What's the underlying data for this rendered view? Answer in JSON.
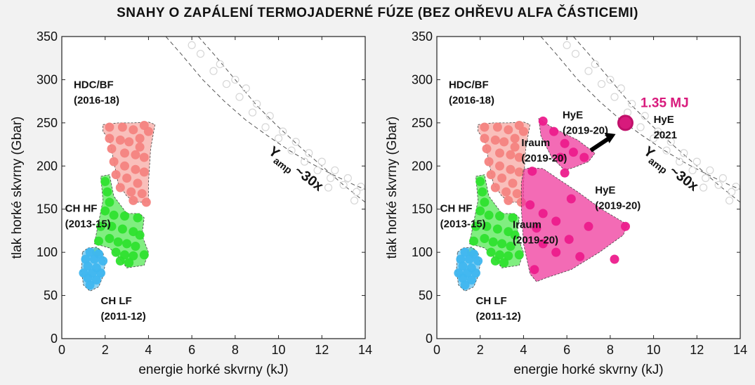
{
  "title": "SNAHY O ZAPÁLENÍ  TERMOJADERNÉ  FÚZE (BEZ OHŘEVU ALFA ČÁSTICEMI)",
  "colors": {
    "hdc": "#f4837f",
    "hdc_fill": "#f7a9a4",
    "chhf": "#2ee02e",
    "chhf_fill": "#55e855",
    "chlf": "#3fb6ef",
    "chlf_fill": "#67c4f0",
    "hye": "#ec1c8c",
    "hye_fill": "#ef3a9c",
    "iraum": "#e8137f",
    "mj": "#d81a7c",
    "faint": "#d6d6d6",
    "axis": "#222222"
  },
  "chart_data": [
    {
      "type": "scatter",
      "xlabel": "energie horké skvrny (kJ)",
      "ylabel": "tlak horké skvrny (Gbar)",
      "xlim": [
        0,
        14
      ],
      "ylim": [
        0,
        350
      ],
      "xticks": [
        "0",
        "2",
        "4",
        "6",
        "8",
        "10",
        "12",
        "14"
      ],
      "yticks": [
        "0",
        "50",
        "100",
        "150",
        "200",
        "250",
        "300",
        "350"
      ],
      "curves_label": [
        "Y",
        "amp",
        "~30x"
      ],
      "series": [
        {
          "name": "HDC/BF",
          "label": [
            "HDC/BF",
            "(2016-18)"
          ],
          "color_key": "hdc",
          "region": [
            [
              1.9,
              248
            ],
            [
              2.6,
              250
            ],
            [
              3.3,
              250
            ],
            [
              4.0,
              251
            ],
            [
              4.3,
              248
            ],
            [
              4.1,
              220
            ],
            [
              4.0,
              180
            ],
            [
              4.0,
              158
            ],
            [
              3.4,
              158
            ],
            [
              3.0,
              165
            ],
            [
              2.6,
              180
            ],
            [
              2.4,
              205
            ],
            [
              2.2,
              230
            ],
            [
              1.9,
              240
            ]
          ],
          "points": [
            [
              2.2,
              245
            ],
            [
              2.8,
              245
            ],
            [
              3.3,
              242
            ],
            [
              3.8,
              247
            ],
            [
              4.0,
              240
            ],
            [
              3.6,
              232
            ],
            [
              2.2,
              232
            ],
            [
              2.7,
              230
            ],
            [
              3.1,
              228
            ],
            [
              3.6,
              222
            ],
            [
              2.3,
              220
            ],
            [
              2.9,
              215
            ],
            [
              3.4,
              213
            ],
            [
              3.8,
              210
            ],
            [
              2.4,
              205
            ],
            [
              2.9,
              200
            ],
            [
              3.4,
              196
            ],
            [
              3.8,
              193
            ],
            [
              2.5,
              190
            ],
            [
              3.0,
              186
            ],
            [
              3.5,
              180
            ],
            [
              2.7,
              175
            ],
            [
              3.2,
              170
            ],
            [
              3.7,
              168
            ],
            [
              3.3,
              160
            ],
            [
              3.9,
              158
            ]
          ]
        },
        {
          "name": "CH HF",
          "label": [
            "CH HF",
            "(2013-15)"
          ],
          "color_key": "chhf",
          "region": [
            [
              1.8,
              188
            ],
            [
              2.2,
              190
            ],
            [
              2.4,
              165
            ],
            [
              3.0,
              145
            ],
            [
              3.6,
              145
            ],
            [
              3.8,
              140
            ],
            [
              3.7,
              120
            ],
            [
              4.0,
              100
            ],
            [
              3.8,
              85
            ],
            [
              3.0,
              82
            ],
            [
              2.6,
              95
            ],
            [
              2.2,
              105
            ],
            [
              1.5,
              110
            ],
            [
              1.7,
              135
            ],
            [
              1.9,
              160
            ]
          ],
          "points": [
            [
              2.0,
              182
            ],
            [
              2.1,
              170
            ],
            [
              2.2,
              158
            ],
            [
              2.0,
              148
            ],
            [
              2.4,
              143
            ],
            [
              2.9,
              142
            ],
            [
              3.5,
              140
            ],
            [
              1.8,
              130
            ],
            [
              2.3,
              130
            ],
            [
              2.8,
              127
            ],
            [
              3.3,
              124
            ],
            [
              3.6,
              120
            ],
            [
              1.7,
              113
            ],
            [
              2.2,
              116
            ],
            [
              2.6,
              112
            ],
            [
              3.0,
              110
            ],
            [
              3.4,
              107
            ],
            [
              1.6,
              100
            ],
            [
              2.5,
              100
            ],
            [
              2.9,
              97
            ],
            [
              3.3,
              96
            ],
            [
              3.8,
              97
            ],
            [
              2.7,
              90
            ],
            [
              3.1,
              88
            ]
          ]
        },
        {
          "name": "CH LF",
          "label": [
            "CH LF",
            "(2011-12)"
          ],
          "color_key": "chlf",
          "region": [
            [
              0.95,
              100
            ],
            [
              1.2,
              105
            ],
            [
              1.6,
              106
            ],
            [
              1.9,
              100
            ],
            [
              2.0,
              86
            ],
            [
              1.9,
              72
            ],
            [
              1.7,
              60
            ],
            [
              1.3,
              55
            ],
            [
              1.0,
              62
            ],
            [
              0.9,
              78
            ]
          ],
          "points": [
            [
              1.3,
              100
            ],
            [
              1.7,
              98
            ],
            [
              1.1,
              92
            ],
            [
              1.5,
              92
            ],
            [
              1.9,
              90
            ],
            [
              1.2,
              84
            ],
            [
              1.6,
              82
            ],
            [
              1.0,
              76
            ],
            [
              1.4,
              76
            ],
            [
              1.8,
              76
            ],
            [
              1.2,
              70
            ],
            [
              1.6,
              68
            ],
            [
              1.3,
              62
            ]
          ]
        },
        {
          "name": "HyE",
          "label": [
            "HyE",
            "(2019-20)"
          ],
          "color_key": "hye",
          "region": [
            [
              4.7,
              255
            ],
            [
              5.3,
              245
            ],
            [
              6.5,
              230
            ],
            [
              7.3,
              215
            ],
            [
              7.0,
              205
            ],
            [
              6.3,
              198
            ],
            [
              5.9,
              195
            ],
            [
              5.3,
              210
            ],
            [
              4.8,
              235
            ]
          ],
          "points": [
            [
              4.9,
              252
            ],
            [
              5.4,
              240
            ],
            [
              5.9,
              226
            ],
            [
              6.3,
              216
            ],
            [
              6.8,
              210
            ],
            [
              5.7,
              210
            ],
            [
              5.9,
              192
            ]
          ]
        },
        {
          "name": "HyE",
          "label": [
            "HyE",
            "(2019-20)"
          ],
          "color_key": "hye",
          "region": [
            [
              4.0,
              196
            ],
            [
              4.3,
              198
            ],
            [
              4.9,
              197
            ],
            [
              5.6,
              185
            ],
            [
              6.5,
              170
            ],
            [
              7.6,
              150
            ],
            [
              8.8,
              132
            ],
            [
              8.6,
              120
            ],
            [
              7.5,
              100
            ],
            [
              6.2,
              80
            ],
            [
              5.0,
              70
            ],
            [
              4.6,
              66
            ],
            [
              4.3,
              75
            ],
            [
              4.0,
              110
            ],
            [
              3.9,
              150
            ],
            [
              3.9,
              180
            ]
          ],
          "points": [
            [
              4.4,
              194
            ],
            [
              4.3,
              155
            ],
            [
              4.9,
              145
            ],
            [
              4.6,
              128
            ],
            [
              5.5,
              136
            ],
            [
              6.2,
              162
            ],
            [
              7.0,
              130
            ],
            [
              8.7,
              130
            ],
            [
              6.1,
              115
            ],
            [
              4.9,
              110
            ],
            [
              5.5,
              100
            ],
            [
              6.6,
              95
            ],
            [
              4.5,
              80
            ],
            [
              8.2,
              92
            ]
          ]
        },
        {
          "name": "HyE",
          "label": [
            "1.35 MJ",
            "HyE",
            "2021"
          ],
          "color_key": "mj",
          "points": [
            [
              8.7,
              250
            ]
          ]
        }
      ],
      "annotations": [
        {
          "text": [
            "Iraum",
            "(2019-20)"
          ],
          "at": [
            4.6,
            201
          ]
        },
        {
          "text": [
            "Iraum",
            "(2019-20)"
          ],
          "at": [
            4.0,
            117
          ]
        }
      ]
    }
  ]
}
